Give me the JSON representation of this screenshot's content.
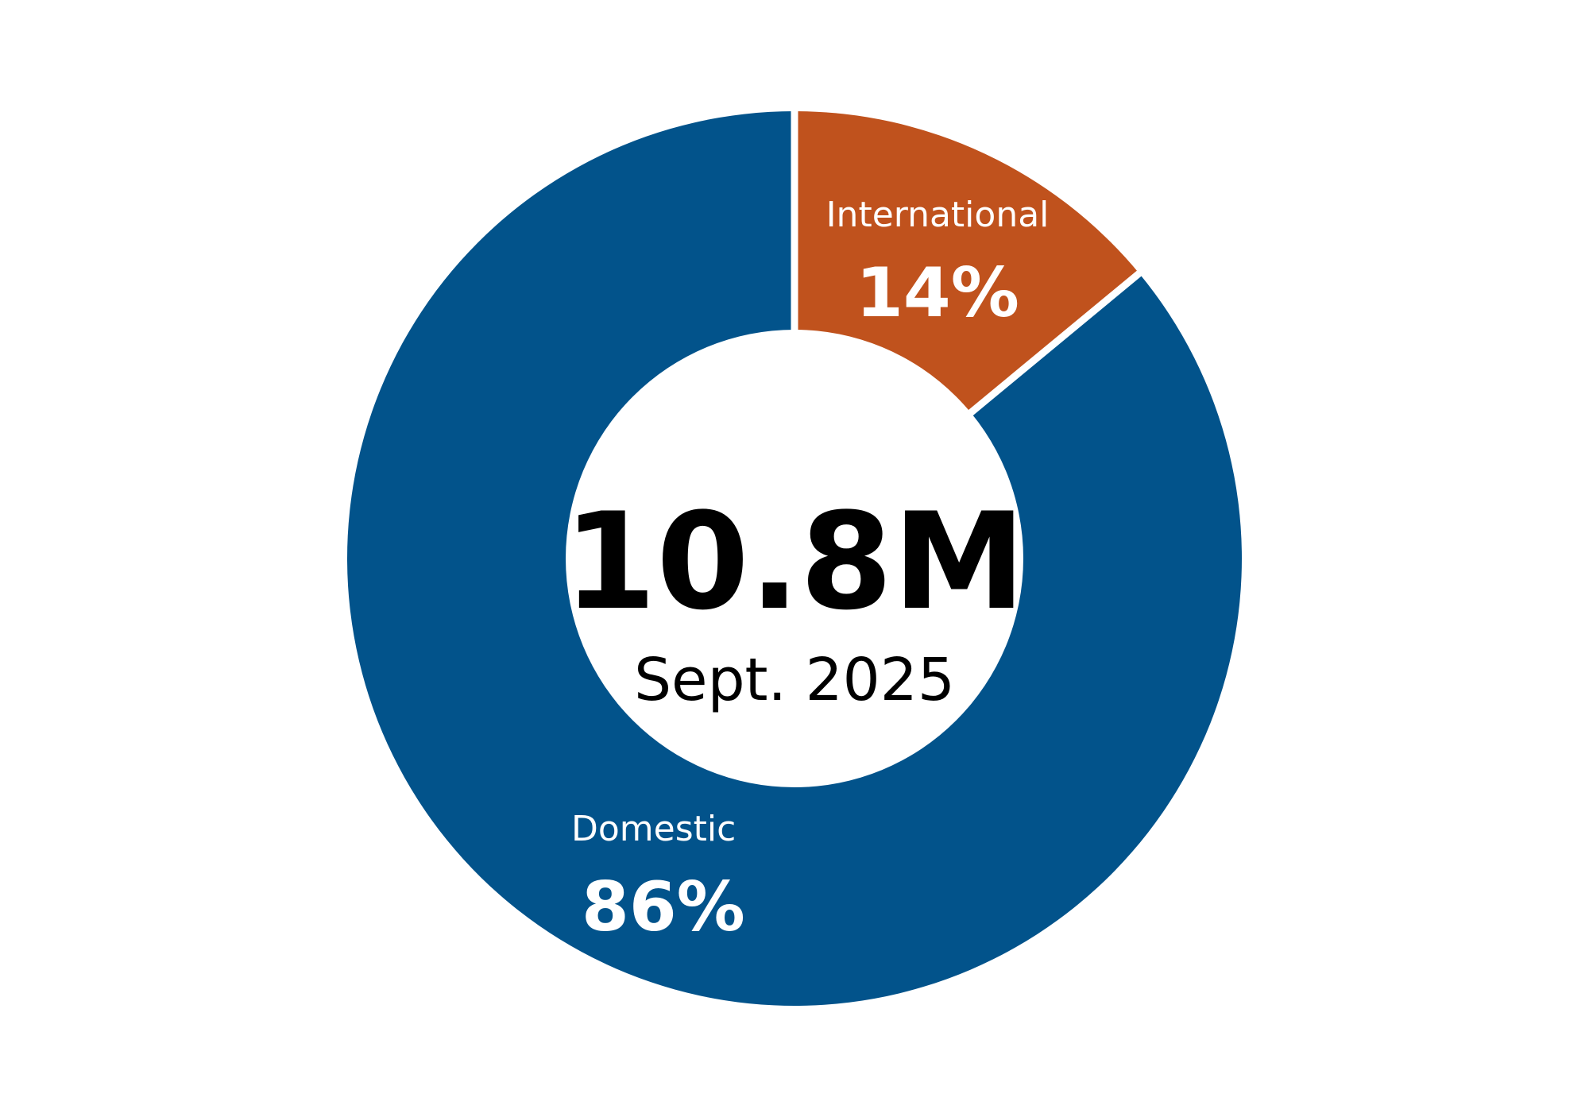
{
  "chart_data": {
    "type": "pie",
    "variant": "donut",
    "total_label": "10.8M",
    "date_label": "Sept. 2025",
    "slices": [
      {
        "name": "International",
        "value": 14,
        "value_label": "14%",
        "color": "#c0521d"
      },
      {
        "name": "Domestic",
        "value": 86,
        "value_label": "86%",
        "color": "#02538b"
      }
    ],
    "start": "12 o'clock",
    "direction": "clockwise",
    "separator_color": "#ffffff",
    "center_fill": "#ffffff"
  }
}
